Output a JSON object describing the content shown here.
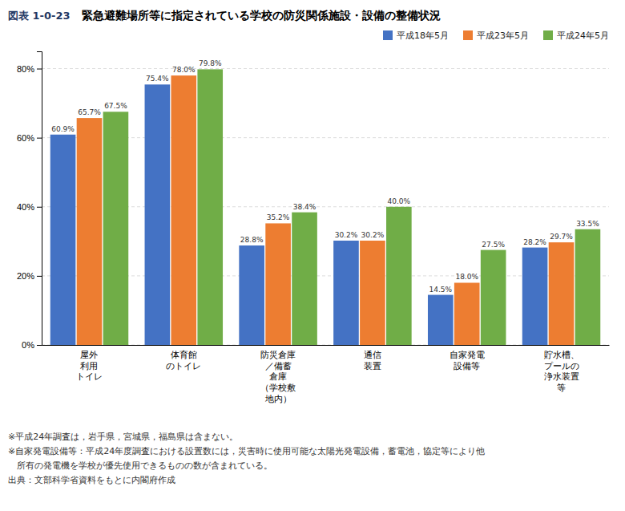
{
  "chart_data": {
    "type": "bar",
    "title": "緊急避難場所等に指定されている学校の防災関係施設・設備の整備状況",
    "annotations": [
      "図表 1-0-23",
      "※平成24年調査は，岩手県，宮城県，福島県は含まない。",
      "※自家発電設備等：平成24年度調査における設置数には，災害時に使用可能な太陽光発電設備，蓄電池，協定等により他",
      "　所有の発電機を学校が優先使用できるものの数が含まれている。",
      "出典：文部科学省資料をもとに内閣府作成"
    ],
    "categories": [
      "屋外\n利用\nトイレ",
      "体育館\nのトイレ",
      "防災倉庫\n／備蓄\n倉庫\n（学校敷\n地内）",
      "通信\n装置",
      "自家発電\n設備等",
      "貯水槽、\nプールの\n浄水装置\n等"
    ],
    "series": [
      {
        "name": "平成18年5月",
        "color": "#4472C4",
        "values": [
          60.9,
          75.4,
          28.8,
          30.2,
          14.5,
          28.2
        ],
        "value_labels": [
          "60.9%",
          "75.4%",
          "28.8%",
          "30.2%",
          "14.5%",
          "28.2%"
        ]
      },
      {
        "name": "平成23年5月",
        "color": "#ED7D31",
        "values": [
          65.7,
          78.0,
          35.2,
          30.2,
          18.0,
          29.7
        ],
        "value_labels": [
          "65.7%",
          "78.0%",
          "35.2%",
          "30.2%",
          "18.0%",
          "29.7%"
        ]
      },
      {
        "name": "平成24年5月",
        "color": "#70AD47",
        "values": [
          67.5,
          79.8,
          38.4,
          40.0,
          27.5,
          33.5
        ],
        "value_labels": [
          "67.5%",
          "79.8%",
          "38.4%",
          "40.0%",
          "27.5%",
          "33.5%"
        ]
      }
    ],
    "ylim": [
      0,
      85
    ],
    "yticks": [
      {
        "value": 0,
        "label": "0%"
      },
      {
        "value": 20,
        "label": "20%"
      },
      {
        "value": 40,
        "label": "40%"
      },
      {
        "value": 60,
        "label": "60%"
      },
      {
        "value": 80,
        "label": "80%"
      }
    ],
    "grid": true,
    "legend": "top-right",
    "data_labels": true
  }
}
